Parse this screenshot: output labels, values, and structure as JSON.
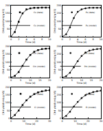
{
  "chart_data": [
    {
      "type": "line",
      "x_label": "Time (d)",
      "y_label": "CH4 yield (mL/g VS)",
      "x": [
        0,
        1,
        2,
        3,
        4,
        5,
        6,
        7,
        8,
        9,
        10
      ],
      "xlim": [
        0,
        10
      ],
      "xticks": [
        0,
        2,
        4,
        6,
        8,
        10
      ],
      "ylim": [
        0,
        200
      ],
      "yticks": [
        0,
        50,
        100,
        150,
        200
      ],
      "grid": false,
      "legend": "lower right",
      "series": [
        {
          "name": "Cs (data)",
          "type": "scatter",
          "marker": "square",
          "color": "#000000",
          "values": [
            0,
            30,
            95,
            150,
            175,
            182,
            185,
            186,
            187,
            187,
            187
          ]
        },
        {
          "name": "Cs (model)",
          "type": "line",
          "line_style": "solid",
          "color": "#000000",
          "values": [
            0,
            35,
            100,
            148,
            172,
            181,
            185,
            186,
            187,
            187,
            187
          ]
        }
      ]
    },
    {
      "type": "line",
      "x_label": "Time (d)",
      "y_label": "CH4 yield (mL/g VS)",
      "x": [
        0,
        1,
        2,
        3,
        4,
        5,
        6,
        7,
        8,
        9,
        10
      ],
      "xlim": [
        0,
        10
      ],
      "xticks": [
        0,
        2,
        4,
        6,
        8,
        10
      ],
      "ylim": [
        0,
        200
      ],
      "yticks": [
        0,
        50,
        100,
        150,
        200
      ],
      "grid": false,
      "legend": "lower right",
      "series": [
        {
          "name": "Ps (data)",
          "type": "scatter",
          "marker": "circle",
          "color": "#000000",
          "values": [
            0,
            15,
            60,
            120,
            160,
            176,
            182,
            185,
            186,
            186,
            186
          ]
        },
        {
          "name": "Ps (model)",
          "type": "line",
          "line_style": "solid",
          "color": "#000000",
          "values": [
            0,
            18,
            65,
            122,
            158,
            175,
            182,
            185,
            186,
            186,
            186
          ]
        }
      ]
    },
    {
      "type": "line",
      "x_label": "Time (d)",
      "y_label": "CH4 yield (mL/g VS)",
      "x": [
        0,
        2,
        4,
        6,
        8,
        10,
        12,
        14,
        16,
        18,
        20
      ],
      "xlim": [
        0,
        20
      ],
      "xticks": [
        0,
        5,
        10,
        15,
        20
      ],
      "ylim": [
        0,
        200
      ],
      "yticks": [
        0,
        50,
        100,
        150,
        200
      ],
      "grid": false,
      "legend": "lower right",
      "series": [
        {
          "name": "Cm (data)",
          "type": "scatter",
          "marker": "square",
          "color": "#000000",
          "values": [
            0,
            10,
            35,
            75,
            115,
            145,
            165,
            176,
            182,
            185,
            186
          ]
        },
        {
          "name": "Cm (model)",
          "type": "line",
          "line_style": "solid",
          "color": "#000000",
          "values": [
            0,
            12,
            38,
            76,
            114,
            144,
            164,
            175,
            181,
            184,
            186
          ]
        }
      ]
    },
    {
      "type": "line",
      "x_label": "Time (d)",
      "y_label": "CH4 yield (mL/g VS)",
      "x": [
        0,
        2,
        4,
        6,
        8,
        10,
        12,
        14,
        16,
        18,
        20
      ],
      "xlim": [
        0,
        20
      ],
      "xticks": [
        0,
        5,
        10,
        15,
        20
      ],
      "ylim": [
        0,
        200
      ],
      "yticks": [
        0,
        50,
        100,
        150,
        200
      ],
      "grid": false,
      "legend": "lower right",
      "series": [
        {
          "name": "Pm (data)",
          "type": "scatter",
          "marker": "circle",
          "color": "#000000",
          "values": [
            0,
            8,
            30,
            65,
            105,
            138,
            160,
            172,
            179,
            183,
            184
          ]
        },
        {
          "name": "Pm (model)",
          "type": "line",
          "line_style": "solid",
          "color": "#000000",
          "values": [
            0,
            10,
            33,
            68,
            106,
            137,
            158,
            171,
            178,
            182,
            184
          ]
        }
      ]
    },
    {
      "type": "line",
      "x_label": "Time (d)",
      "y_label": "CH4 yield (mL/g VS)",
      "x": [
        0,
        3,
        6,
        9,
        12,
        15,
        18,
        21,
        24,
        27,
        30
      ],
      "xlim": [
        0,
        30
      ],
      "xticks": [
        0,
        10,
        20,
        30
      ],
      "ylim": [
        0,
        200
      ],
      "yticks": [
        0,
        50,
        100,
        150,
        200
      ],
      "grid": false,
      "legend": "lower right",
      "series": [
        {
          "name": "Cl (data)",
          "type": "scatter",
          "marker": "square",
          "color": "#000000",
          "values": [
            0,
            20,
            50,
            85,
            115,
            138,
            155,
            166,
            173,
            178,
            180
          ]
        },
        {
          "name": "Cl (model)",
          "type": "line",
          "line_style": "solid",
          "color": "#000000",
          "values": [
            0,
            22,
            52,
            86,
            114,
            137,
            154,
            165,
            172,
            177,
            180
          ]
        }
      ]
    },
    {
      "type": "line",
      "x_label": "Time (d)",
      "y_label": "CH4 yield (mL/g VS)",
      "x": [
        0,
        3,
        6,
        9,
        12,
        15,
        18,
        21,
        24,
        27,
        30
      ],
      "xlim": [
        0,
        30
      ],
      "xticks": [
        0,
        10,
        20,
        30
      ],
      "ylim": [
        0,
        200
      ],
      "yticks": [
        0,
        50,
        100,
        150,
        200
      ],
      "grid": false,
      "legend": "lower right",
      "series": [
        {
          "name": "Pl (data)",
          "type": "scatter",
          "marker": "circle",
          "color": "#000000",
          "values": [
            0,
            15,
            42,
            75,
            105,
            130,
            148,
            160,
            168,
            174,
            177
          ]
        },
        {
          "name": "Pl (model)",
          "type": "line",
          "line_style": "solid",
          "color": "#000000",
          "values": [
            0,
            17,
            44,
            76,
            104,
            129,
            147,
            159,
            167,
            173,
            177
          ]
        }
      ]
    }
  ]
}
